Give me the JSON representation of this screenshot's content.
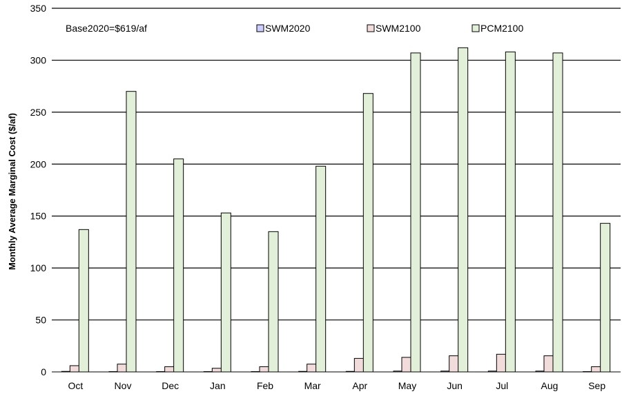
{
  "chart_data": {
    "type": "bar",
    "categories": [
      "Oct",
      "Nov",
      "Dec",
      "Jan",
      "Feb",
      "Mar",
      "Apr",
      "May",
      "Jun",
      "Jul",
      "Aug",
      "Sep"
    ],
    "series": [
      {
        "name": "SWM2020",
        "color": "#ccccff",
        "values": [
          0.5,
          0.3,
          0.3,
          0.3,
          0.3,
          0.5,
          0.5,
          0.8,
          0.8,
          0.8,
          0.8,
          0.3
        ]
      },
      {
        "name": "SWM2100",
        "color": "#f2dcdb",
        "values": [
          6,
          7.5,
          5,
          3.5,
          5,
          7.5,
          13,
          14,
          15.5,
          17,
          15.5,
          5
        ]
      },
      {
        "name": "PCM2100",
        "color": "#e2f0d9",
        "values": [
          137,
          270,
          205,
          153,
          135,
          198,
          268,
          307,
          312,
          308,
          307,
          143
        ]
      }
    ],
    "ylabel": "Monthly Average Marginal Cost ($/af)",
    "xlabel": "",
    "ylim": [
      0,
      350
    ],
    "yticks": [
      0,
      50,
      100,
      150,
      200,
      250,
      300,
      350
    ],
    "grid": true,
    "legend_position": "top",
    "annotation": "Base2020=$619/af"
  }
}
